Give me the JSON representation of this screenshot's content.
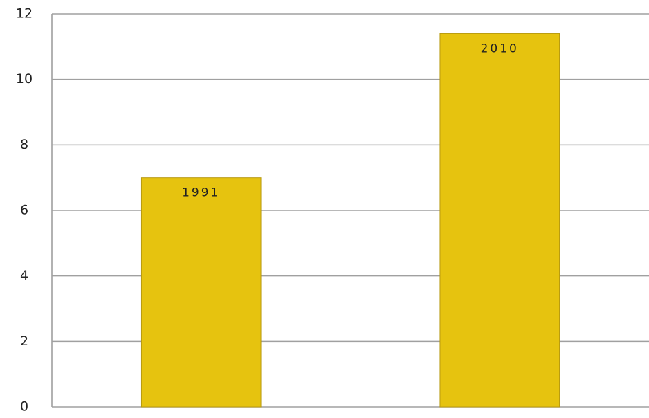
{
  "chart_data": {
    "type": "bar",
    "categories": [
      "1991",
      "2010"
    ],
    "values": [
      7,
      11.4
    ],
    "color": "#e6c30f",
    "ylim": [
      0,
      12
    ],
    "yticks": [
      0,
      2,
      4,
      6,
      8,
      10,
      12
    ],
    "grid": true
  }
}
